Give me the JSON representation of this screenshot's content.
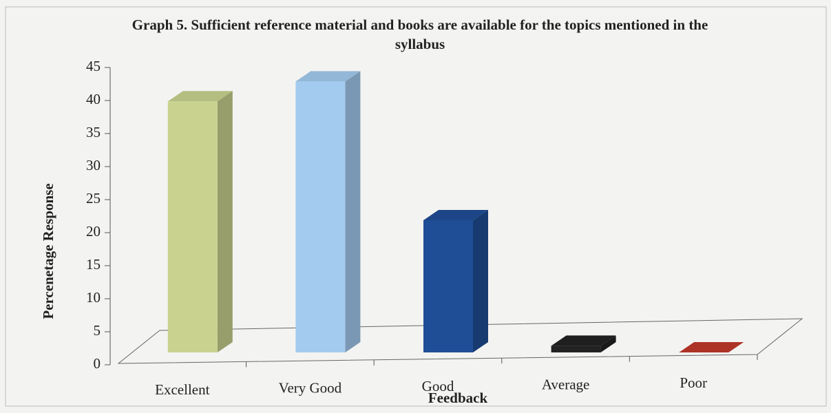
{
  "chart_data": {
    "type": "bar3d",
    "title": "Graph 5. Sufficient reference material and books are available for the topics mentioned in the syllabus",
    "xlabel": "Feedback",
    "ylabel": "Percenetage Response",
    "categories": [
      "Excellent",
      "Very Good",
      "Good",
      "Average",
      "Poor"
    ],
    "values": [
      38,
      41,
      20,
      1,
      0
    ],
    "colors": [
      "#c9d38f",
      "#a3cbef",
      "#1f4e96",
      "#222222",
      "#c0392b"
    ],
    "ylim": [
      0,
      45
    ],
    "yticks": [
      0,
      5,
      10,
      15,
      20,
      25,
      30,
      35,
      40,
      45
    ]
  }
}
